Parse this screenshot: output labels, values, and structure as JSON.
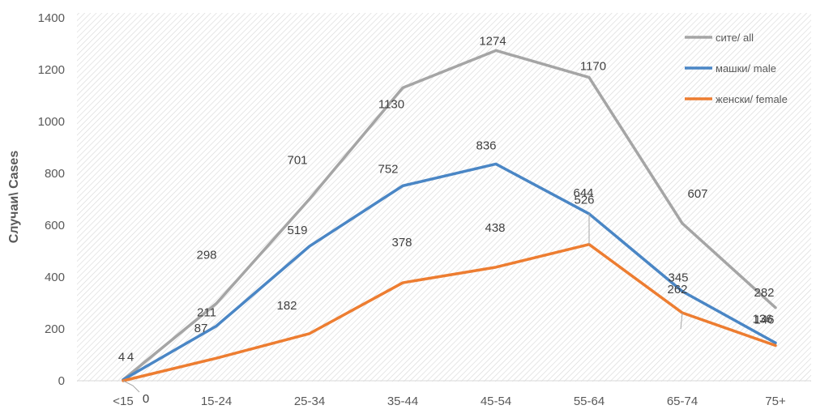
{
  "chart_data": {
    "type": "line",
    "title": "",
    "xlabel": "",
    "ylabel": "Случаи\\ Cases",
    "categories": [
      "<15",
      "15-24",
      "25-34",
      "35-44",
      "45-54",
      "55-64",
      "65-74",
      "75+"
    ],
    "ylim": [
      0,
      1400
    ],
    "yticks": [
      0,
      200,
      400,
      600,
      800,
      1000,
      1200,
      1400
    ],
    "grid": false,
    "legend_position": "top-right",
    "series": [
      {
        "name": "сите/ all",
        "color": "#a5a5a5",
        "values": [
          4,
          298,
          701,
          1130,
          1274,
          1170,
          607,
          282
        ]
      },
      {
        "name": "машки/ male",
        "color": "#4a86c5",
        "values": [
          4,
          211,
          519,
          752,
          836,
          644,
          345,
          146
        ]
      },
      {
        "name": "женски/ female",
        "color": "#ed7d31",
        "values": [
          0,
          87,
          182,
          378,
          438,
          526,
          262,
          136
        ]
      }
    ]
  }
}
